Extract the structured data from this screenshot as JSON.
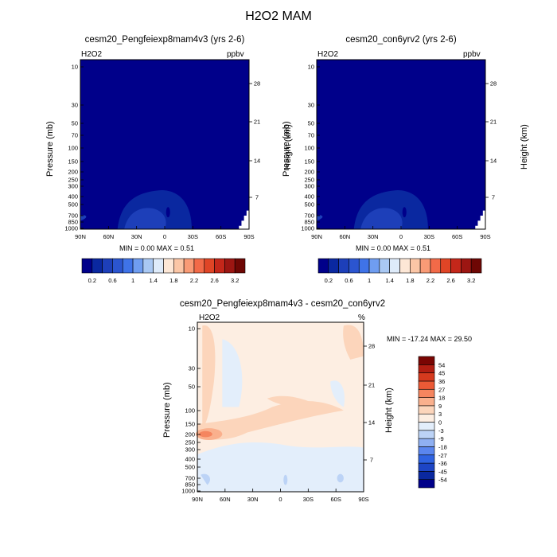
{
  "title": "H2O2 MAM",
  "colorbar_top": {
    "colors": [
      "#00008a",
      "#0a28a0",
      "#1d3fb9",
      "#2b55d0",
      "#3f73e8",
      "#6f9df0",
      "#a9c8f3",
      "#deebfa",
      "#fde7d6",
      "#fbc6a6",
      "#f99b76",
      "#f26a48",
      "#e04526",
      "#c4271a",
      "#9c1612",
      "#6e0704"
    ],
    "labels": [
      "0.2",
      "0.6",
      "1",
      "1.4",
      "1.8",
      "2.2",
      "2.6",
      "3.2"
    ]
  },
  "colorbar_diff": {
    "colors": [
      "#00008a",
      "#0a28a0",
      "#1d45c5",
      "#2f63e2",
      "#5a86ef",
      "#8fb0f2",
      "#bcd3f6",
      "#e3eefb",
      "#fdeee2",
      "#fcd5bb",
      "#fab08d",
      "#f5855f",
      "#ec5a36",
      "#d63a1e",
      "#b21e12",
      "#7a0503"
    ],
    "labels": [
      "54",
      "45",
      "36",
      "27",
      "18",
      "9",
      "3",
      "0",
      "-3",
      "-9",
      "-18",
      "-27",
      "-36",
      "-45",
      "-54"
    ]
  },
  "chart_data": [
    {
      "type": "heatmap",
      "title": "cesm20_Pengfeiexp8mam4v3 (yrs 2-6)",
      "variable": "H2O2",
      "units": "ppbv",
      "xlabel": "",
      "ylabel": "Pressure (mb)",
      "y2label": "Height (km)",
      "x_ticks": [
        "90N",
        "60N",
        "30N",
        "0",
        "30S",
        "60S",
        "90S"
      ],
      "y_ticks": [
        "10",
        "30",
        "50",
        "70",
        "100",
        "150",
        "200",
        "250",
        "300",
        "400",
        "500",
        "700",
        "850",
        "1000"
      ],
      "y2_ticks": [
        "28",
        "21",
        "14",
        "7"
      ],
      "min": 0.0,
      "max": 0.51,
      "stats_text": "MIN =   0.00   MAX =    0.51"
    },
    {
      "type": "heatmap",
      "title": "cesm20_con6yrv2 (yrs 2-6)",
      "variable": "H2O2",
      "units": "ppbv",
      "xlabel": "",
      "ylabel": "Pressure (mb)",
      "y2label": "Height (km)",
      "x_ticks": [
        "90N",
        "60N",
        "30N",
        "0",
        "30S",
        "60S",
        "90S"
      ],
      "y_ticks": [
        "10",
        "30",
        "50",
        "70",
        "100",
        "150",
        "200",
        "250",
        "300",
        "400",
        "500",
        "700",
        "850",
        "1000"
      ],
      "y2_ticks": [
        "28",
        "21",
        "14",
        "7"
      ],
      "min": 0.0,
      "max": 0.51,
      "stats_text": "MIN =   0.00   MAX =    0.51"
    },
    {
      "type": "heatmap",
      "title": "cesm20_Pengfeiexp8mam4v3 - cesm20_con6yrv2",
      "variable": "H2O2",
      "units": "%",
      "xlabel": "",
      "ylabel": "Pressure (mb)",
      "y2label": "Height (km)",
      "x_ticks": [
        "90N",
        "60N",
        "30N",
        "0",
        "30S",
        "60S",
        "90S"
      ],
      "y_ticks": [
        "10",
        "30",
        "50",
        "100",
        "150",
        "200",
        "250",
        "300",
        "400",
        "500",
        "700",
        "850",
        "1000"
      ],
      "y2_ticks": [
        "28",
        "21",
        "14",
        "7"
      ],
      "min": -17.24,
      "max": 29.5,
      "stats_text": "MIN = -17.24  MAX =  29.50"
    }
  ]
}
